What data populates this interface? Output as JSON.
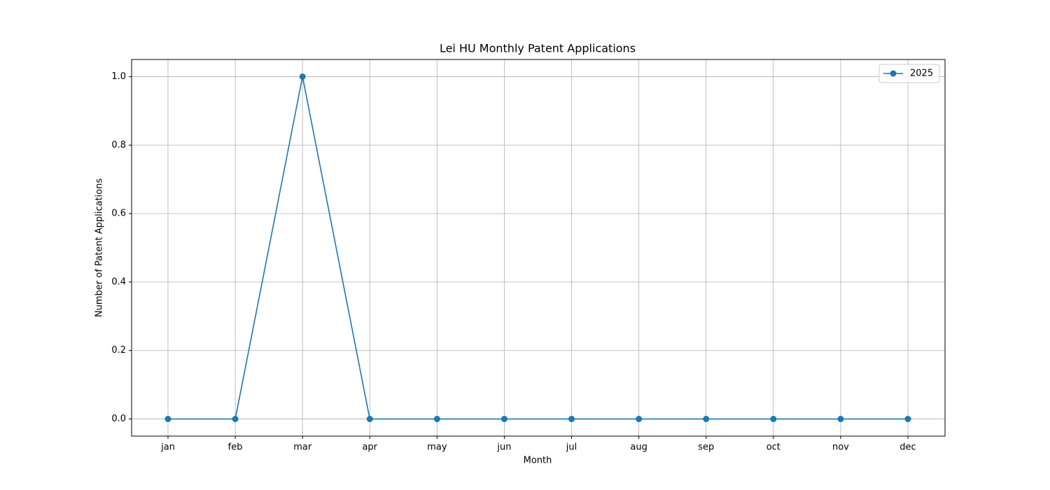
{
  "chart_data": {
    "type": "line",
    "title": "Lei HU Monthly Patent Applications",
    "x_label": "Month",
    "y_label": "Number of Patent Applications",
    "categories": [
      "jan",
      "feb",
      "mar",
      "apr",
      "may",
      "jun",
      "jul",
      "aug",
      "sep",
      "oct",
      "nov",
      "dec"
    ],
    "series": [
      {
        "name": "2025",
        "color": "#1f77b4",
        "values": [
          0,
          0,
          1,
          0,
          0,
          0,
          0,
          0,
          0,
          0,
          0,
          0
        ]
      }
    ],
    "ylim": [
      -0.05,
      1.05
    ],
    "yticks": [
      {
        "value": 0,
        "label": "0.0"
      },
      0.2,
      0.4,
      0.6,
      0.8,
      {
        "value": 1,
        "label": "1.0"
      }
    ],
    "grid": true,
    "legend": "upper-right"
  }
}
